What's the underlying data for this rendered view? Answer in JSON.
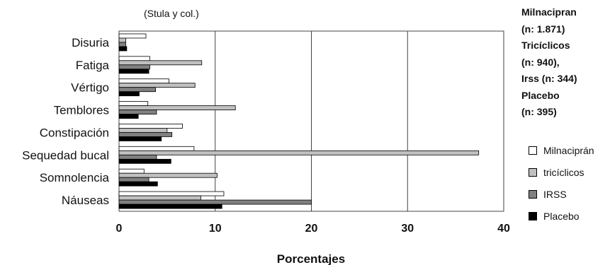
{
  "chart_data": {
    "type": "bar",
    "orientation": "horizontal",
    "subtitle": "(Stula y col.)",
    "xlabel": "Porcentajes",
    "ylabel": "",
    "xlim": [
      0,
      40
    ],
    "xticks": [
      0,
      10,
      20,
      30,
      40
    ],
    "grid": true,
    "categories": [
      "Disuria",
      "Fatiga",
      "Vértigo",
      "Temblores",
      "Constipación",
      "Sequedad bucal",
      "Somnolencia",
      "Náuseas"
    ],
    "series": [
      {
        "name": "Milnaciprán",
        "color": "#ffffff",
        "values": [
          2.8,
          3.2,
          5.2,
          3.0,
          6.6,
          7.8,
          2.6,
          10.9
        ]
      },
      {
        "name": "tricíclicos",
        "color": "#c0c0c0",
        "values": [
          0.7,
          8.6,
          7.9,
          12.1,
          5.0,
          37.4,
          10.2,
          8.5
        ]
      },
      {
        "name": "IRSS",
        "color": "#808080",
        "values": [
          0.7,
          3.2,
          3.8,
          3.9,
          5.5,
          3.9,
          3.1,
          20.0
        ]
      },
      {
        "name": "Placebo",
        "color": "#000000",
        "values": [
          0.8,
          3.1,
          2.1,
          2.0,
          4.4,
          5.4,
          4.0,
          10.7
        ]
      }
    ],
    "legend_title": [
      "Milnacipran",
      "(n: 1.871)",
      "Tricíclicos",
      "(n: 940),",
      "Irss (n: 344)",
      "Placebo",
      "(n: 395)"
    ],
    "legend_position": "right"
  }
}
